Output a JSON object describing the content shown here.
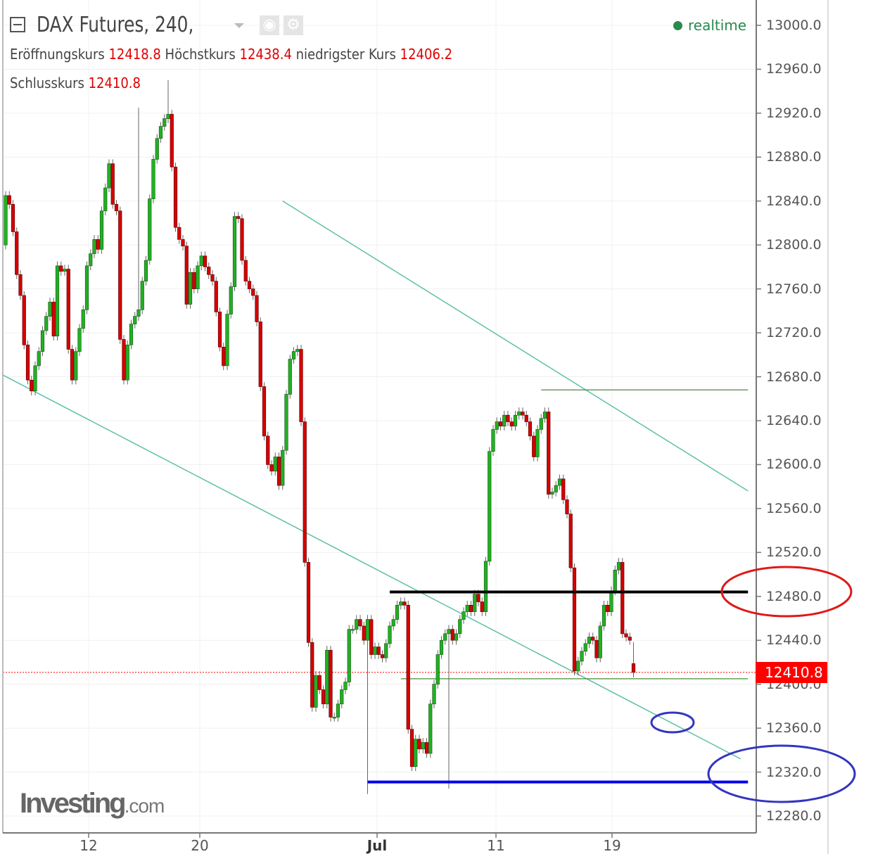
{
  "header": {
    "title": "DAX Futures, 240,",
    "open_label": "Eröffnungskurs",
    "open_value": "12418.8",
    "high_label": "Höchstkurs",
    "high_value": "12438.4",
    "low_label": "niedrigster Kurs",
    "low_value": "12406.2",
    "close_label": "Schlusskurs",
    "close_value": "12410.8",
    "status": "realtime",
    "icons": [
      "collapse-icon",
      "dropdown-caret-icon",
      "eye-icon",
      "gear-icon"
    ]
  },
  "watermark": {
    "brand": "Investing",
    "suffix": ".com"
  },
  "current_price_tag": "12410.8",
  "colors": {
    "up": "#22b022",
    "down": "#d40000",
    "trendline": "#5fbfa8",
    "price_line": "#ff0000",
    "status": "#2a8a50"
  },
  "chart_data": {
    "type": "candlestick",
    "title": "DAX Futures, 240,",
    "interval": "240",
    "ylim": [
      12260,
      13020
    ],
    "y_ticks": [
      "13000.0",
      "12960.0",
      "12920.0",
      "12880.0",
      "12840.0",
      "12800.0",
      "12760.0",
      "12720.0",
      "12680.0",
      "12640.0",
      "12600.0",
      "12560.0",
      "12520.0",
      "12480.0",
      "12440.0",
      "12400.0",
      "12360.0",
      "12320.0",
      "12280.0"
    ],
    "x_ticks": [
      "12",
      "20",
      "Jul",
      "11",
      "19"
    ],
    "grid": true,
    "first_open": 12800,
    "close": [
      12845,
      12837,
      12812,
      12773,
      12754,
      12709,
      12677,
      12667,
      12690,
      12703,
      12722,
      12735,
      12748,
      12717,
      12781,
      12776,
      12778,
      12705,
      12677,
      12703,
      12724,
      12741,
      12781,
      12792,
      12805,
      12796,
      12831,
      12852,
      12874,
      12837,
      12831,
      12714,
      12677,
      12709,
      12728,
      12735,
      12741,
      12767,
      12786,
      12842,
      12878,
      12897,
      12908,
      12915,
      12919,
      12871,
      12816,
      12805,
      12799,
      12746,
      12775,
      12760,
      12781,
      12790,
      12780,
      12773,
      12767,
      12739,
      12707,
      12690,
      12737,
      12762,
      12826,
      12824,
      12786,
      12767,
      12760,
      12754,
      12730,
      12671,
      12626,
      12600,
      12594,
      12607,
      12581,
      12613,
      12664,
      12696,
      12703,
      12705,
      12639,
      12511,
      12438,
      12379,
      12408,
      12395,
      12382,
      12431,
      12370,
      12370,
      12382,
      12395,
      12402,
      12450,
      12450,
      12459,
      12453,
      12440,
      12459,
      12427,
      12434,
      12427,
      12424,
      12437,
      12453,
      12459,
      12472,
      12475,
      12472,
      12359,
      12325,
      12350,
      12341,
      12347,
      12337,
      12382,
      12400,
      12427,
      12440,
      12446,
      12450,
      12440,
      12446,
      12459,
      12466,
      12472,
      12466,
      12482,
      12475,
      12466,
      12512,
      12612,
      12632,
      12639,
      12635,
      12645,
      12639,
      12635,
      12645,
      12648,
      12645,
      12639,
      12626,
      12607,
      12632,
      12642,
      12648,
      12573,
      12575,
      12581,
      12587,
      12568,
      12555,
      12506,
      12412,
      12421,
      12430,
      12437,
      12443,
      12440,
      12424,
      12453,
      12472,
      12466,
      12485,
      12504,
      12511,
      12446,
      12443,
      12440,
      12418.8
    ],
    "last_candle": {
      "open": 12418.8,
      "high": 12438.4,
      "low": 12406.2,
      "close": 12410.8
    },
    "notable_extremes": [
      {
        "index": 44,
        "high": 12950
      },
      {
        "index": 36,
        "high": 12925
      },
      {
        "index": 98,
        "low": 12300
      },
      {
        "index": 120,
        "low": 12305
      }
    ],
    "annotations": [
      {
        "type": "trendline",
        "color": "#5fbfa8",
        "from": [
          75,
          12840
        ],
        "to": [
          201,
          12576
        ]
      },
      {
        "type": "trendline",
        "color": "#5fbfa8",
        "from": [
          -1,
          12682
        ],
        "to": [
          199,
          12332
        ]
      },
      {
        "type": "hline",
        "color": "#000000",
        "price": 12484,
        "from_index": 104,
        "to_index": 201
      },
      {
        "type": "hline",
        "color": "#0000ee",
        "price": 12311,
        "from_index": 98,
        "to_index": 201
      },
      {
        "type": "hline",
        "color": "#4a8a3a",
        "price": 12668,
        "from_index": 145,
        "to_index": 201
      },
      {
        "type": "hline",
        "color": "#4a8a3a",
        "price": 12405,
        "from_index": 107,
        "to_index": 201
      },
      {
        "type": "price_line",
        "color": "#ff0000",
        "price": 12410.8
      }
    ]
  }
}
